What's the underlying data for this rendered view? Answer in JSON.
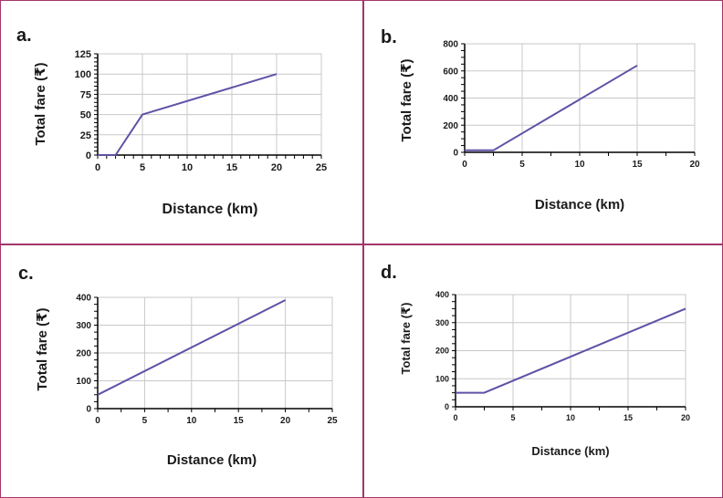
{
  "chart_data": [
    {
      "id": "a",
      "panel_label": "a.",
      "type": "line",
      "xlabel": "Distance (km)",
      "ylabel": "Total fare (₹)",
      "xlim": [
        0,
        25
      ],
      "ylim": [
        0,
        125
      ],
      "xticks": [
        0,
        5,
        10,
        15,
        20,
        25
      ],
      "yticks": [
        0,
        25,
        50,
        75,
        100,
        125
      ],
      "x_minor_step": 1,
      "y_minor_step": 5,
      "grid": true,
      "series": [
        {
          "name": "fare",
          "x": [
            0,
            2,
            5,
            20
          ],
          "y": [
            0,
            0,
            50,
            100
          ]
        }
      ]
    },
    {
      "id": "b",
      "panel_label": "b.",
      "type": "line",
      "xlabel": "Distance (km)",
      "ylabel": "Total fare (₹)",
      "xlim": [
        0,
        20
      ],
      "ylim": [
        0,
        800
      ],
      "xticks": [
        0,
        5,
        10,
        15,
        20
      ],
      "yticks": [
        0,
        200,
        400,
        600,
        800
      ],
      "x_minor_step": 2.5,
      "y_minor_step": 50,
      "grid": true,
      "series": [
        {
          "name": "fare",
          "x": [
            0,
            2.5,
            15
          ],
          "y": [
            15,
            15,
            640
          ]
        }
      ]
    },
    {
      "id": "c",
      "panel_label": "c.",
      "type": "line",
      "xlabel": "Distance (km)",
      "ylabel": "Total fare (₹)",
      "xlim": [
        0,
        25
      ],
      "ylim": [
        0,
        400
      ],
      "xticks": [
        0,
        5,
        10,
        15,
        20,
        25
      ],
      "yticks": [
        0,
        100,
        200,
        300,
        400
      ],
      "x_minor_step": 2.5,
      "y_minor_step": 25,
      "grid": true,
      "series": [
        {
          "name": "fare",
          "x": [
            0,
            20
          ],
          "y": [
            50,
            390
          ]
        }
      ]
    },
    {
      "id": "d",
      "panel_label": "d.",
      "type": "line",
      "xlabel": "Distance (km)",
      "ylabel": "Total fare (₹)",
      "xlim": [
        0,
        20
      ],
      "ylim": [
        0,
        400
      ],
      "xticks": [
        0,
        5,
        10,
        15,
        20
      ],
      "yticks": [
        0,
        100,
        200,
        300,
        400
      ],
      "x_minor_step": 2.5,
      "y_minor_step": 25,
      "grid": true,
      "series": [
        {
          "name": "fare",
          "x": [
            0,
            2.5,
            20
          ],
          "y": [
            50,
            50,
            350
          ]
        }
      ]
    }
  ],
  "colors": {
    "line": "#6150a6",
    "grid": "#c8c8c8",
    "axis": "#000000",
    "border": "#a3356a"
  }
}
